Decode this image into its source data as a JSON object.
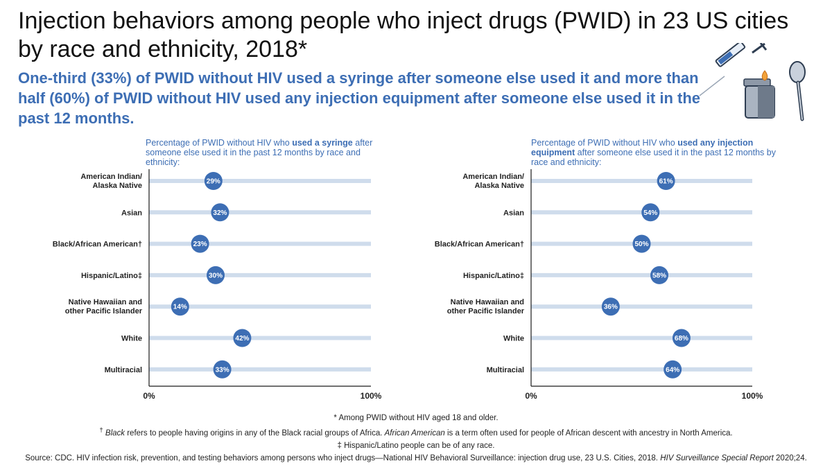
{
  "title": "Injection behaviors among people who inject drugs (PWID) in 23 US cities by race and ethnicity, 2018*",
  "subtitle": "One-third (33%) of PWID without HIV used a syringe after someone else used it and more than half (60%) of PWID without HIV used any injection equipment after someone else used it in the past 12 months.",
  "colors": {
    "accent": "#3d6eb4",
    "track": "#cfdcec",
    "dot": "#3d6eb4"
  },
  "icons": [
    "syringe-icon",
    "lighter-icon",
    "spoon-icon"
  ],
  "chart_data": [
    {
      "type": "dot-plot",
      "title_parts": {
        "pre": "Percentage of PWID without HIV who ",
        "bold": "used a syringe",
        "post": " after someone else used it in the past 12 months by race and ethnicity:"
      },
      "categories": [
        [
          "American Indian/",
          "Alaska Native"
        ],
        [
          "Asian"
        ],
        [
          "Black/African American†"
        ],
        [
          "Hispanic/Latino‡"
        ],
        [
          "Native Hawaiian and",
          "other Pacific Islander"
        ],
        [
          "White"
        ],
        [
          "Multiracial"
        ]
      ],
      "values": [
        29,
        32,
        23,
        30,
        14,
        42,
        33
      ],
      "value_labels": [
        "29%",
        "32%",
        "23%",
        "30%",
        "14%",
        "42%",
        "33%"
      ],
      "xlim": [
        0,
        100
      ],
      "ticks": [
        "0%",
        "100%"
      ]
    },
    {
      "type": "dot-plot",
      "title_parts": {
        "pre": "Percentage of PWID without HIV who ",
        "bold": "used any injection equipment",
        "post": " after someone else used it in the past 12 months by race and ethnicity:"
      },
      "categories": [
        [
          "American Indian/",
          "Alaska Native"
        ],
        [
          "Asian"
        ],
        [
          "Black/African American†"
        ],
        [
          "Hispanic/Latino‡"
        ],
        [
          "Native Hawaiian and",
          "other Pacific Islander"
        ],
        [
          "White"
        ],
        [
          "Multiracial"
        ]
      ],
      "values": [
        61,
        54,
        50,
        58,
        36,
        68,
        64
      ],
      "value_labels": [
        "61%",
        "54%",
        "50%",
        "58%",
        "36%",
        "68%",
        "64%"
      ],
      "xlim": [
        0,
        100
      ],
      "ticks": [
        "0%",
        "100%"
      ]
    }
  ],
  "footnotes": {
    "star": "* Among PWID without HIV aged 18 and older.",
    "dagger_mark": "†",
    "dagger_italic1": "Black",
    "dagger_text1": " refers to people having origins in any of the Black racial groups of Africa. ",
    "dagger_italic2": "African American",
    "dagger_text2": " is a term often used for people of African descent with ancestry in North America.",
    "ddagger": "‡ Hispanic/Latino people can be of any race.",
    "source_text": "Source: CDC. HIV infection risk, prevention, and testing behaviors among persons who inject drugs—National HIV Behavioral Surveillance: injection drug use, 23 U.S. Cities, 2018. ",
    "source_italic": "HIV Surveillance Special Report",
    "source_end": " 2020;24."
  }
}
